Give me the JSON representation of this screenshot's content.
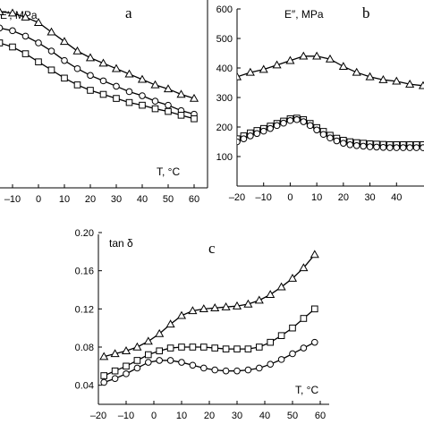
{
  "chart_data": [
    {
      "type": "line",
      "panel_label": "a",
      "ylabel": "E′, MPa",
      "xlabel": "T, °C",
      "xlim": [
        -20,
        60
      ],
      "ylim": [
        0,
        700
      ],
      "x_ticks": [
        "–10",
        "0",
        "10",
        "20",
        "30",
        "40",
        "50",
        "60"
      ],
      "series": [
        {
          "marker": "triangle",
          "x": [
            -15,
            -10,
            -5,
            0,
            5,
            10,
            15,
            20,
            25,
            30,
            35,
            40,
            45,
            50,
            55,
            60
          ],
          "y": [
            650,
            645,
            630,
            610,
            575,
            540,
            505,
            480,
            460,
            440,
            420,
            400,
            380,
            365,
            345,
            330
          ]
        },
        {
          "marker": "circle",
          "x": [
            -15,
            -10,
            -5,
            0,
            5,
            10,
            15,
            20,
            25,
            30,
            35,
            40,
            45,
            50,
            55,
            60
          ],
          "y": [
            590,
            580,
            560,
            535,
            505,
            470,
            440,
            415,
            395,
            375,
            355,
            340,
            320,
            305,
            285,
            272
          ]
        },
        {
          "marker": "square",
          "x": [
            -15,
            -10,
            -5,
            0,
            5,
            10,
            15,
            20,
            25,
            30,
            35,
            40,
            45,
            50,
            55,
            60
          ],
          "y": [
            535,
            520,
            495,
            465,
            435,
            405,
            380,
            360,
            345,
            330,
            315,
            305,
            292,
            282,
            268,
            255
          ]
        }
      ]
    },
    {
      "type": "line",
      "panel_label": "b",
      "ylabel": "E″, MPa",
      "xlim": [
        -20,
        50
      ],
      "ylim": [
        0,
        600
      ],
      "y_ticks": [
        "600",
        "500",
        "400",
        "300",
        "200",
        "100"
      ],
      "x_ticks": [
        "–20",
        "–10",
        "0",
        "10",
        "20",
        "30",
        "40"
      ],
      "series": [
        {
          "marker": "triangle",
          "x": [
            -20,
            -15,
            -10,
            -5,
            0,
            5,
            10,
            15,
            20,
            25,
            30,
            35,
            40,
            45,
            50
          ],
          "y": [
            370,
            385,
            395,
            410,
            425,
            440,
            440,
            430,
            405,
            385,
            370,
            360,
            355,
            345,
            340
          ]
        },
        {
          "marker": "square",
          "x": [
            -20,
            -17.5,
            -15,
            -12.5,
            -10,
            -7.5,
            -5,
            -2.5,
            0,
            2.5,
            5,
            7.5,
            10,
            12.5,
            15,
            17.5,
            20,
            22.5,
            25,
            27.5,
            30,
            32.5,
            35,
            37.5,
            40,
            42.5,
            45,
            47.5,
            50
          ],
          "y": [
            160,
            170,
            180,
            188,
            195,
            203,
            212,
            220,
            228,
            230,
            225,
            212,
            198,
            185,
            172,
            162,
            155,
            150,
            147,
            145,
            143,
            142,
            141,
            140,
            140,
            140,
            140,
            140,
            140
          ]
        },
        {
          "marker": "circle",
          "x": [
            -20,
            -17.5,
            -15,
            -12.5,
            -10,
            -7.5,
            -5,
            -2.5,
            0,
            2.5,
            5,
            7.5,
            10,
            12.5,
            15,
            17.5,
            20,
            22.5,
            25,
            27.5,
            30,
            32.5,
            35,
            37.5,
            40,
            42.5,
            45,
            47.5,
            50
          ],
          "y": [
            150,
            160,
            170,
            178,
            186,
            195,
            205,
            213,
            222,
            225,
            218,
            205,
            190,
            175,
            163,
            153,
            145,
            140,
            137,
            135,
            133,
            132,
            131,
            130,
            130,
            130,
            130,
            130,
            130
          ]
        }
      ]
    },
    {
      "type": "line",
      "panel_label": "c",
      "ylabel": "tan δ",
      "xlabel": "T, °C",
      "xlim": [
        -20,
        60
      ],
      "ylim": [
        0.02,
        0.2
      ],
      "y_ticks": [
        "0.20",
        "0.16",
        "0.12",
        "0.08",
        "0.04"
      ],
      "x_ticks": [
        "–20",
        "–10",
        "0",
        "10",
        "20",
        "30",
        "40",
        "50",
        "60"
      ],
      "series": [
        {
          "marker": "triangle",
          "x": [
            -18,
            -14,
            -10,
            -6,
            -2,
            2,
            6,
            10,
            14,
            18,
            22,
            26,
            30,
            34,
            38,
            42,
            46,
            50,
            54,
            58
          ],
          "y": [
            0.07,
            0.073,
            0.076,
            0.08,
            0.086,
            0.094,
            0.104,
            0.113,
            0.118,
            0.12,
            0.121,
            0.122,
            0.123,
            0.125,
            0.129,
            0.135,
            0.143,
            0.152,
            0.163,
            0.177
          ]
        },
        {
          "marker": "square",
          "x": [
            -18,
            -14,
            -10,
            -6,
            -2,
            2,
            6,
            10,
            14,
            18,
            22,
            26,
            30,
            34,
            38,
            42,
            46,
            50,
            54,
            58
          ],
          "y": [
            0.05,
            0.055,
            0.06,
            0.066,
            0.072,
            0.076,
            0.079,
            0.08,
            0.08,
            0.08,
            0.079,
            0.078,
            0.078,
            0.078,
            0.08,
            0.085,
            0.092,
            0.1,
            0.11,
            0.12
          ]
        },
        {
          "marker": "circle",
          "x": [
            -18,
            -14,
            -10,
            -6,
            -2,
            2,
            6,
            10,
            14,
            18,
            22,
            26,
            30,
            34,
            38,
            42,
            46,
            50,
            54,
            58
          ],
          "y": [
            0.043,
            0.047,
            0.052,
            0.058,
            0.064,
            0.066,
            0.066,
            0.064,
            0.061,
            0.058,
            0.056,
            0.055,
            0.055,
            0.056,
            0.058,
            0.062,
            0.067,
            0.073,
            0.079,
            0.085
          ]
        }
      ]
    }
  ]
}
